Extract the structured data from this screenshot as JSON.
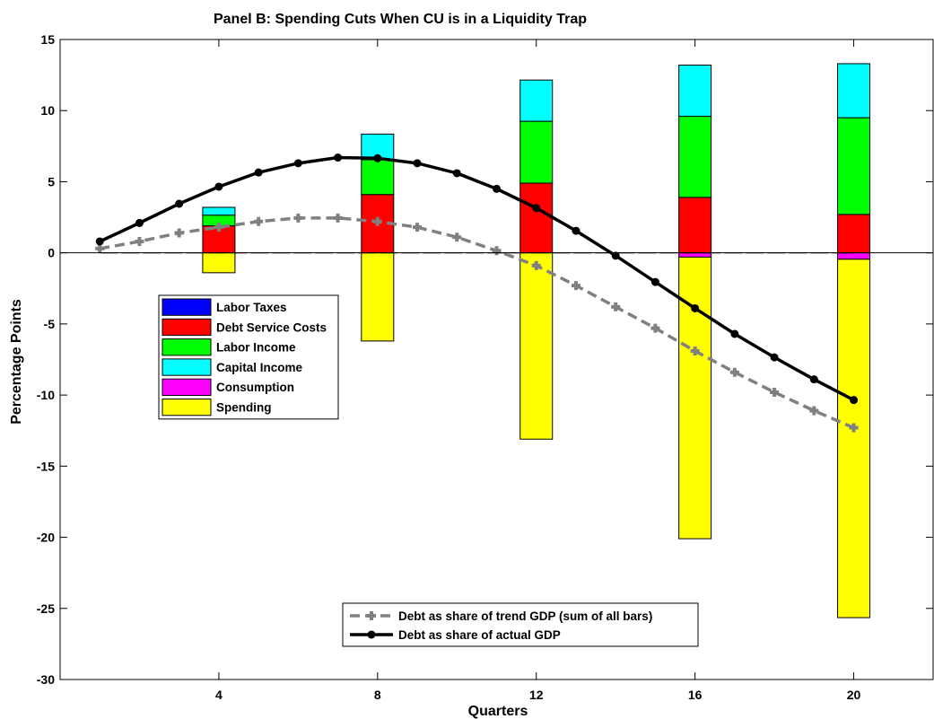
{
  "chart_data": {
    "type": "bar",
    "title": "Panel B: Spending Cuts When CU is in a Liquidity Trap",
    "xlabel": "Quarters",
    "ylabel": "Percentage Points",
    "xlim": [
      0,
      22
    ],
    "ylim": [
      -30,
      15
    ],
    "xticks": [
      4,
      8,
      12,
      16,
      20
    ],
    "yticks": [
      -30,
      -25,
      -20,
      -15,
      -10,
      -5,
      0,
      5,
      10,
      15
    ],
    "grid": false,
    "bar_categories": [
      4,
      8,
      12,
      16,
      20
    ],
    "stacked_series": [
      {
        "name": "Labor Taxes",
        "color": "#0000ff",
        "values": [
          0,
          0,
          0,
          0,
          0
        ]
      },
      {
        "name": "Debt Service Costs",
        "color": "#ff0000",
        "values": [
          1.9,
          4.1,
          4.9,
          3.9,
          2.7
        ]
      },
      {
        "name": "Labor Income",
        "color": "#00ff00",
        "values": [
          0.75,
          2.45,
          4.35,
          5.7,
          6.8
        ]
      },
      {
        "name": "Capital Income",
        "color": "#00ffff",
        "values": [
          0.55,
          1.8,
          2.9,
          3.6,
          3.8
        ]
      },
      {
        "name": "Consumption",
        "color": "#ff00ff",
        "values": [
          0,
          0,
          0,
          -0.3,
          -0.45
        ]
      },
      {
        "name": "Spending",
        "color": "#ffff00",
        "values": [
          -1.4,
          -6.2,
          -13.1,
          -19.8,
          -25.2
        ]
      }
    ],
    "line_series": [
      {
        "name": "Debt as share of trend GDP (sum of all bars)",
        "color": "#808080",
        "style": "dashed",
        "marker": "plus",
        "x": [
          1,
          2,
          3,
          4,
          5,
          6,
          7,
          8,
          9,
          10,
          11,
          12,
          13,
          14,
          15,
          16,
          17,
          18,
          19,
          20
        ],
        "y": [
          0.3,
          0.8,
          1.4,
          1.8,
          2.2,
          2.45,
          2.45,
          2.2,
          1.8,
          1.1,
          0.15,
          -0.9,
          -2.3,
          -3.8,
          -5.3,
          -6.9,
          -8.4,
          -9.8,
          -11.1,
          -12.3
        ]
      },
      {
        "name": "Debt as share of actual GDP",
        "color": "#000000",
        "style": "solid",
        "marker": "circle",
        "x": [
          1,
          2,
          3,
          4,
          5,
          6,
          7,
          8,
          9,
          10,
          11,
          12,
          13,
          14,
          15,
          16,
          17,
          18,
          19,
          20
        ],
        "y": [
          0.8,
          2.1,
          3.45,
          4.65,
          5.65,
          6.3,
          6.7,
          6.65,
          6.3,
          5.6,
          4.5,
          3.15,
          1.55,
          -0.2,
          -2.05,
          -3.9,
          -5.7,
          -7.35,
          -8.9,
          -10.35
        ]
      }
    ],
    "legend_bars_placement": "center-left",
    "legend_lines_placement": "bottom-center"
  }
}
